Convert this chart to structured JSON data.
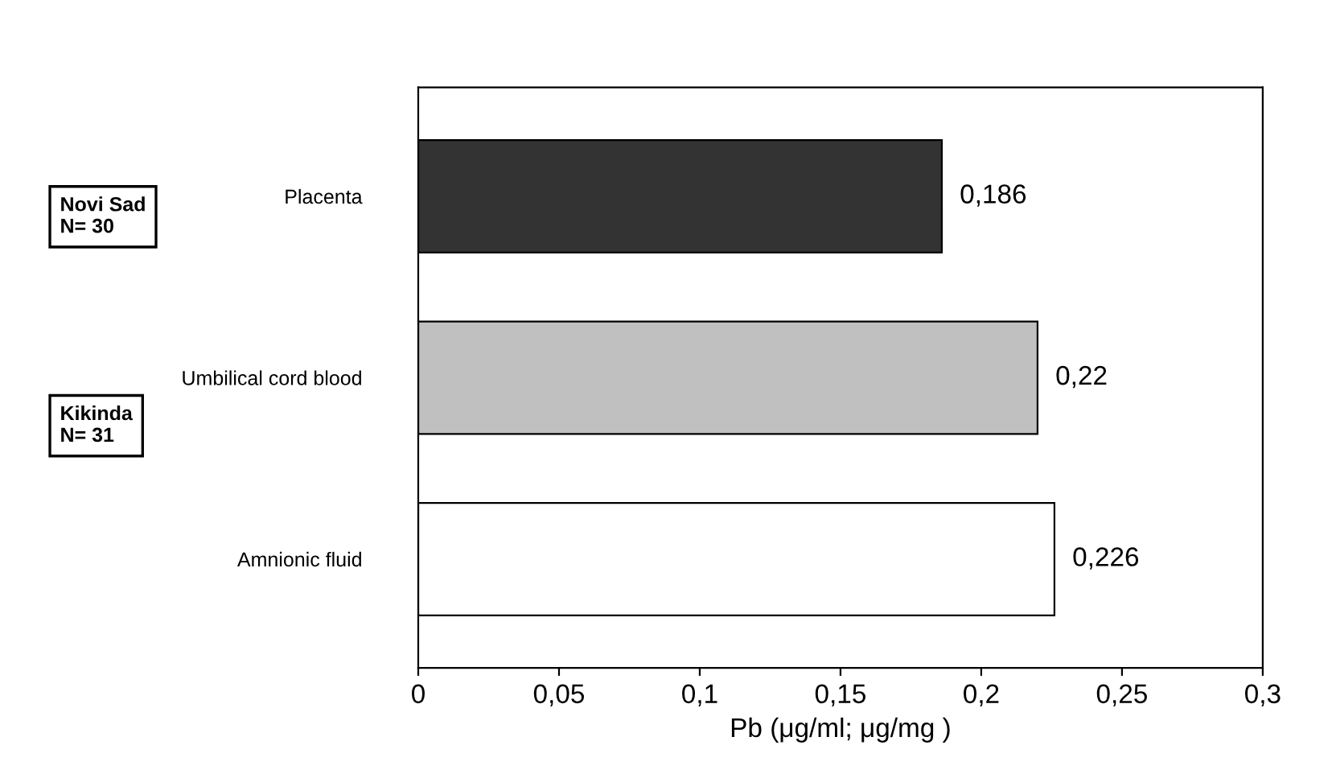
{
  "chart_data": {
    "type": "bar",
    "orientation": "horizontal",
    "categories": [
      "Placenta",
      "Umbilical cord blood",
      "Amnionic fluid"
    ],
    "values": [
      0.186,
      0.22,
      0.226
    ],
    "colors": [
      "#333333",
      "#c0c0c0",
      "#ffffff"
    ],
    "value_labels": [
      "0,186",
      "0,22",
      "0,226"
    ],
    "xlabel": "Pb (μg/ml; μg/mg )",
    "xlim": [
      0,
      0.3
    ],
    "xticks": [
      0,
      {
        "value": 0.05,
        "label": "0,05"
      },
      {
        "value": 0.1,
        "label": "0,1"
      },
      {
        "value": 0.15,
        "label": "0,15"
      },
      {
        "value": 0.2,
        "label": "0,2"
      },
      {
        "value": 0.25,
        "label": "0,25"
      },
      {
        "value": 0.3,
        "label": "0,3"
      }
    ],
    "annotations": [
      "Novi Sad\nN= 30",
      "Kikinda\nN= 31"
    ],
    "grid": false
  }
}
